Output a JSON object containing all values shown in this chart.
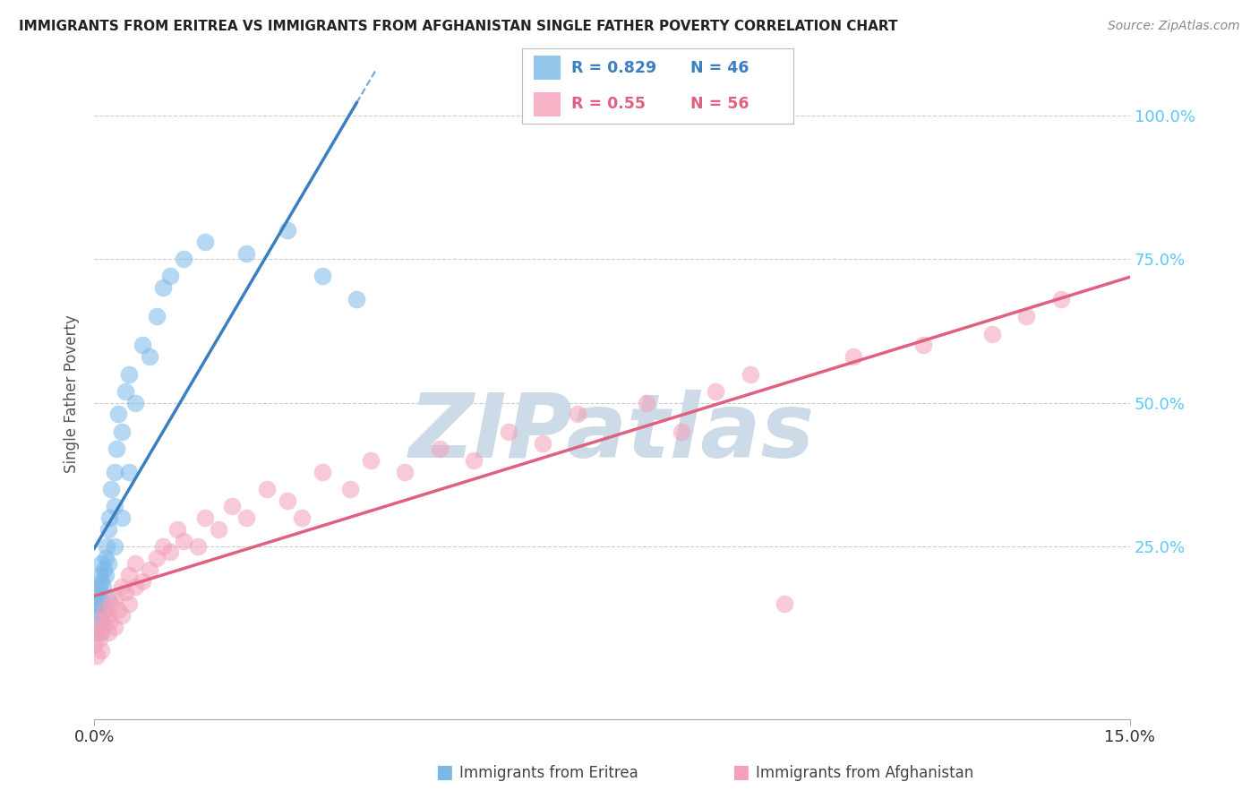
{
  "title": "IMMIGRANTS FROM ERITREA VS IMMIGRANTS FROM AFGHANISTAN SINGLE FATHER POVERTY CORRELATION CHART",
  "source": "Source: ZipAtlas.com",
  "ylabel": "Single Father Poverty",
  "legend_eritrea": "Immigrants from Eritrea",
  "legend_afghanistan": "Immigrants from Afghanistan",
  "R_eritrea": 0.829,
  "N_eritrea": 46,
  "R_afghanistan": 0.55,
  "N_afghanistan": 56,
  "color_eritrea": "#7ab8e8",
  "color_afghanistan": "#f4a0b8",
  "line_color_eritrea": "#3a7fc1",
  "line_color_afghanistan": "#e06080",
  "watermark_color": "#cddbe8",
  "background_color": "#ffffff",
  "grid_color": "#cccccc",
  "right_tick_color": "#5bc8f5",
  "eritrea_x": [
    0.0,
    0.0002,
    0.0004,
    0.0005,
    0.0006,
    0.0007,
    0.0008,
    0.0009,
    0.001,
    0.001,
    0.001,
    0.001,
    0.0012,
    0.0013,
    0.0014,
    0.0015,
    0.0016,
    0.0017,
    0.0018,
    0.002,
    0.002,
    0.002,
    0.0022,
    0.0025,
    0.003,
    0.003,
    0.003,
    0.0032,
    0.0035,
    0.004,
    0.004,
    0.0045,
    0.005,
    0.005,
    0.006,
    0.007,
    0.008,
    0.009,
    0.01,
    0.011,
    0.013,
    0.016,
    0.022,
    0.028,
    0.033,
    0.038
  ],
  "eritrea_y": [
    0.15,
    0.1,
    0.14,
    0.17,
    0.13,
    0.18,
    0.16,
    0.2,
    0.1,
    0.15,
    0.19,
    0.22,
    0.12,
    0.18,
    0.21,
    0.14,
    0.2,
    0.23,
    0.25,
    0.16,
    0.22,
    0.28,
    0.3,
    0.35,
    0.25,
    0.32,
    0.38,
    0.42,
    0.48,
    0.3,
    0.45,
    0.52,
    0.38,
    0.55,
    0.5,
    0.6,
    0.58,
    0.65,
    0.7,
    0.72,
    0.75,
    0.78,
    0.76,
    0.8,
    0.72,
    0.68
  ],
  "afghanistan_x": [
    0.0,
    0.0003,
    0.0005,
    0.0007,
    0.001,
    0.001,
    0.0012,
    0.0015,
    0.002,
    0.002,
    0.0022,
    0.0025,
    0.003,
    0.003,
    0.0035,
    0.004,
    0.004,
    0.0045,
    0.005,
    0.005,
    0.006,
    0.006,
    0.007,
    0.008,
    0.009,
    0.01,
    0.011,
    0.012,
    0.013,
    0.015,
    0.016,
    0.018,
    0.02,
    0.022,
    0.025,
    0.028,
    0.03,
    0.033,
    0.037,
    0.04,
    0.045,
    0.05,
    0.055,
    0.06,
    0.065,
    0.07,
    0.08,
    0.085,
    0.09,
    0.095,
    0.1,
    0.11,
    0.12,
    0.13,
    0.135,
    0.14
  ],
  "afghanistan_y": [
    0.08,
    0.06,
    0.1,
    0.09,
    0.07,
    0.12,
    0.11,
    0.14,
    0.1,
    0.13,
    0.12,
    0.15,
    0.11,
    0.16,
    0.14,
    0.13,
    0.18,
    0.17,
    0.15,
    0.2,
    0.18,
    0.22,
    0.19,
    0.21,
    0.23,
    0.25,
    0.24,
    0.28,
    0.26,
    0.25,
    0.3,
    0.28,
    0.32,
    0.3,
    0.35,
    0.33,
    0.3,
    0.38,
    0.35,
    0.4,
    0.38,
    0.42,
    0.4,
    0.45,
    0.43,
    0.48,
    0.5,
    0.45,
    0.52,
    0.55,
    0.15,
    0.58,
    0.6,
    0.62,
    0.65,
    0.68
  ],
  "xmin": 0.0,
  "xmax": 0.15,
  "ymin": -0.05,
  "ymax": 1.08
}
